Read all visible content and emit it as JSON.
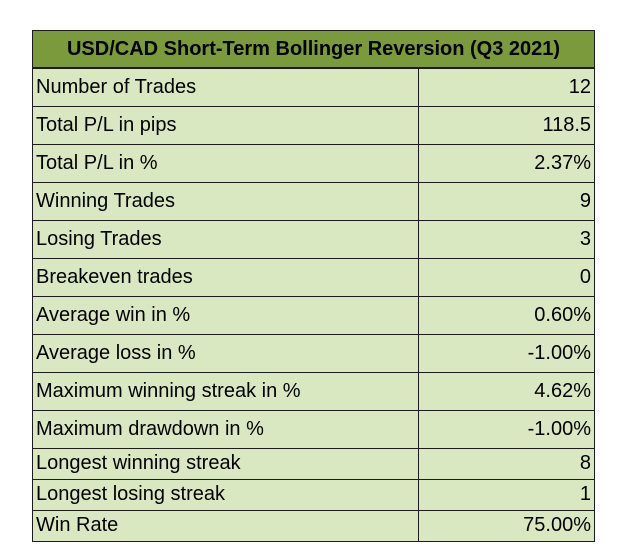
{
  "table": {
    "title": "USD/CAD Short-Term Bollinger Reversion (Q3 2021)",
    "rows": [
      {
        "label": "Number of Trades",
        "value": "12"
      },
      {
        "label": "Total P/L in pips",
        "value": "118.5"
      },
      {
        "label": "Total P/L in %",
        "value": "2.37%"
      },
      {
        "label": "Winning Trades",
        "value": "9"
      },
      {
        "label": "Losing Trades",
        "value": "3"
      },
      {
        "label": "Breakeven trades",
        "value": "0"
      },
      {
        "label": "Average win in %",
        "value": "0.60%"
      },
      {
        "label": "Average loss in %",
        "value": "-1.00%"
      },
      {
        "label": "Maximum winning streak in %",
        "value": "4.62%"
      },
      {
        "label": "Maximum drawdown in %",
        "value": "-1.00%"
      },
      {
        "label": "Longest winning streak",
        "value": "8"
      },
      {
        "label": "Longest losing streak",
        "value": "1"
      },
      {
        "label": "Win Rate",
        "value": "75.00%"
      }
    ]
  },
  "colors": {
    "header_background": "#7b9a3b",
    "body_background": "#d9e8c1",
    "border": "#1c1c1c"
  }
}
